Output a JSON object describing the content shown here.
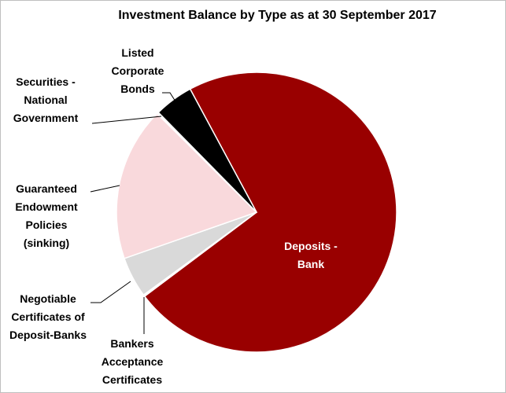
{
  "chart_data": {
    "type": "pie",
    "title": "Investment Balance by Type as at 30 September 2017",
    "categories": [
      "Deposits - Bank",
      "Bankers Acceptance Certificates",
      "Negotiable Certificates of Deposit-Banks",
      "Guaranteed Endowment Policies (sinking)",
      "Securities - National Government",
      "Listed Corporate Bonds"
    ],
    "values": [
      72.6,
      0.2,
      4.7,
      17.8,
      0.2,
      4.5
    ],
    "colors": [
      "#990000",
      "#ffffff",
      "#d9d9d9",
      "#f9d9dc",
      "#ffffff",
      "#000000"
    ]
  }
}
